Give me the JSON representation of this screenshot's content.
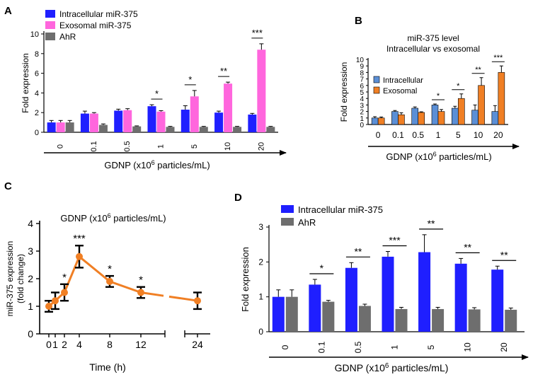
{
  "colors": {
    "blue": "#1f1fff",
    "pink": "#ff66dd",
    "gray": "#6e6e6e",
    "steel": "#5b8fd6",
    "orange": "#f07f24",
    "line": "#f07f24"
  },
  "chart_data": [
    {
      "id": "A",
      "panel_label": "A",
      "type": "bar",
      "categories": [
        "0",
        "0.1",
        "0.5",
        "1",
        "5",
        "10",
        "20"
      ],
      "series": [
        {
          "name": "Intracellular miR-375",
          "values": [
            1.0,
            1.9,
            2.2,
            2.65,
            2.3,
            2.0,
            1.8
          ],
          "errors": [
            0.2,
            0.25,
            0.15,
            0.15,
            0.4,
            0.15,
            0.12
          ]
        },
        {
          "name": "Exosomal miR-375",
          "values": [
            1.0,
            1.9,
            2.25,
            2.1,
            3.65,
            4.95,
            8.4
          ],
          "errors": [
            0.2,
            0.1,
            0.15,
            0.1,
            0.6,
            0.15,
            0.6
          ]
        },
        {
          "name": "AhR",
          "values": [
            1.0,
            0.75,
            0.6,
            0.55,
            0.55,
            0.55,
            0.55
          ],
          "errors": [
            0.2,
            0.1,
            0.05,
            0.05,
            0.05,
            0.05,
            0.05
          ]
        }
      ],
      "significance": [
        {
          "category": "1",
          "label": "*"
        },
        {
          "category": "5",
          "label": "*"
        },
        {
          "category": "10",
          "label": "**"
        },
        {
          "category": "20",
          "label": "***"
        }
      ],
      "ylabel": "Fold expression",
      "xlabel": "GDNP (x10",
      "xlabel_sup": "6",
      "xlabel_tail": " particles/mL)",
      "yticks": [
        "0",
        "2",
        "4",
        "6",
        "8",
        "10"
      ],
      "ylim": [
        0,
        10
      ]
    },
    {
      "id": "B",
      "panel_label": "B",
      "type": "bar",
      "title_line1": "miR-375 level",
      "title_line2": "Intracellular vs exosomal",
      "categories": [
        "0",
        "0.1",
        "0.5",
        "1",
        "5",
        "10",
        "20"
      ],
      "series": [
        {
          "name": "Intracellular",
          "values": [
            1.0,
            2.0,
            2.5,
            3.0,
            2.5,
            2.2,
            2.0
          ],
          "errors": [
            0.2,
            0.15,
            0.2,
            0.15,
            0.3,
            0.8,
            0.9
          ]
        },
        {
          "name": "Exosomal",
          "values": [
            1.0,
            1.5,
            1.85,
            2.0,
            4.0,
            6.0,
            8.0
          ],
          "errors": [
            0.15,
            0.3,
            0.1,
            0.3,
            0.7,
            1.2,
            1.0
          ]
        }
      ],
      "significance": [
        {
          "category": "1",
          "label": "*"
        },
        {
          "category": "5",
          "label": "*"
        },
        {
          "category": "10",
          "label": "**"
        },
        {
          "category": "20",
          "label": "***"
        }
      ],
      "ylabel": "Fold expression",
      "xlabel": "GDNP (x10",
      "xlabel_sup": "6",
      "xlabel_tail": " particles/mL)",
      "yticks": [
        "0",
        "1",
        "2",
        "3",
        "4",
        "5",
        "6",
        "7",
        "8",
        "9",
        "10"
      ],
      "ylim": [
        0,
        10
      ]
    },
    {
      "id": "C",
      "panel_label": "C",
      "type": "line",
      "title": "GDNP (x10",
      "title_sup": "6",
      "title_tail": " particles/mL)",
      "x": [
        0,
        1,
        2,
        4,
        8,
        12,
        24
      ],
      "xticks": [
        "0",
        "1",
        "2",
        "4",
        "8",
        "12",
        "24"
      ],
      "y": [
        1.0,
        1.2,
        1.5,
        2.8,
        1.9,
        1.5,
        1.2
      ],
      "errors": [
        0.2,
        0.3,
        0.3,
        0.4,
        0.2,
        0.2,
        0.3
      ],
      "significance": [
        {
          "x": 2,
          "label": "*"
        },
        {
          "x": 4,
          "label": "***"
        },
        {
          "x": 8,
          "label": "*"
        },
        {
          "x": 12,
          "label": "*"
        }
      ],
      "ylabel_line1": "miR-375 expression",
      "ylabel_line2": "(fold change)",
      "xlabel": "Time (h)",
      "yticks": [
        "0",
        "1",
        "2",
        "3",
        "4"
      ],
      "ylim": [
        0,
        4
      ],
      "axis_break": "between 12 and 24"
    },
    {
      "id": "D",
      "panel_label": "D",
      "type": "bar",
      "categories": [
        "0",
        "0.1",
        "0.5",
        "1",
        "5",
        "10",
        "20"
      ],
      "series": [
        {
          "name": "Intracellular miR-375",
          "values": [
            1.0,
            1.35,
            1.83,
            2.15,
            2.28,
            1.95,
            1.78
          ],
          "errors": [
            0.2,
            0.15,
            0.15,
            0.15,
            0.5,
            0.15,
            0.1
          ]
        },
        {
          "name": "AhR",
          "values": [
            1.0,
            0.86,
            0.74,
            0.65,
            0.65,
            0.64,
            0.63
          ],
          "errors": [
            0.2,
            0.04,
            0.05,
            0.05,
            0.05,
            0.05,
            0.05
          ]
        }
      ],
      "significance": [
        {
          "category": "0.1",
          "label": "*"
        },
        {
          "category": "0.5",
          "label": "**"
        },
        {
          "category": "1",
          "label": "***"
        },
        {
          "category": "5",
          "label": "**"
        },
        {
          "category": "10",
          "label": "**"
        },
        {
          "category": "20",
          "label": "**"
        }
      ],
      "ylabel": "Fold expression",
      "xlabel": "GDNP (x10",
      "xlabel_sup": "6",
      "xlabel_tail": " particles/mL)",
      "yticks": [
        "0",
        "1",
        "2",
        "3"
      ],
      "ylim": [
        0,
        3
      ]
    }
  ]
}
